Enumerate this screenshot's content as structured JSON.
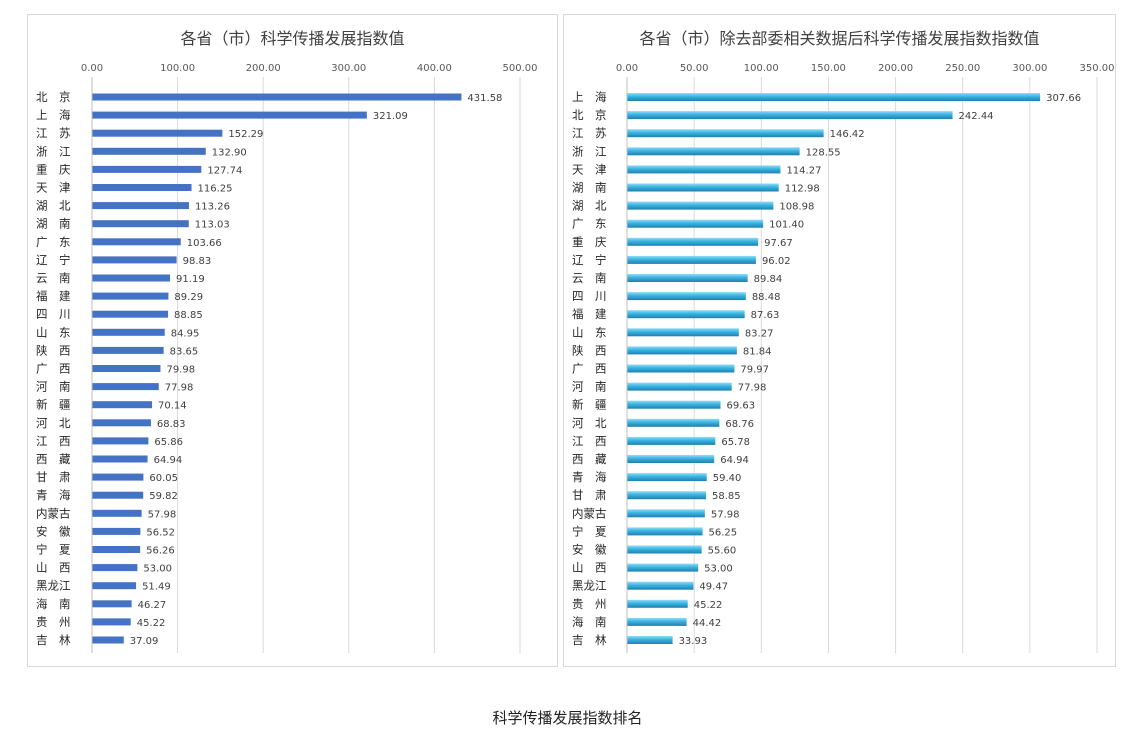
{
  "caption": "科学传播发展指数排名",
  "colors": {
    "left_bar": "#4472c4",
    "right_bar": "#38b3e0",
    "grid": "#d9d9d9"
  },
  "chart_data": [
    {
      "type": "bar",
      "orientation": "horizontal",
      "title": "各省（市）科学传播发展指数值",
      "xlim": [
        0,
        500
      ],
      "ticks": [
        "0.00",
        "100.00",
        "200.00",
        "300.00",
        "400.00",
        "500.00"
      ],
      "grid": true,
      "categories": [
        "北　京",
        "上　海",
        "江　苏",
        "浙　江",
        "重　庆",
        "天　津",
        "湖　北",
        "湖　南",
        "广　东",
        "辽　宁",
        "云　南",
        "福　建",
        "四　川",
        "山　东",
        "陕　西",
        "广　西",
        "河　南",
        "新　疆",
        "河　北",
        "江　西",
        "西　藏",
        "甘　肃",
        "青　海",
        "内蒙古",
        "安　徽",
        "宁　夏",
        "山　西",
        "黑龙江",
        "海　南",
        "贵　州",
        "吉　林"
      ],
      "values": [
        431.58,
        321.09,
        152.29,
        132.9,
        127.74,
        116.25,
        113.26,
        113.03,
        103.66,
        98.83,
        91.19,
        89.29,
        88.85,
        84.95,
        83.65,
        79.98,
        77.98,
        70.14,
        68.83,
        65.86,
        64.94,
        60.05,
        59.82,
        57.98,
        56.52,
        56.26,
        53.0,
        51.49,
        46.27,
        45.22,
        37.09
      ],
      "value_labels": [
        "431.58",
        "321.09",
        "152.29",
        "132.90",
        "127.74",
        "116.25",
        "113.26",
        "113.03",
        "103.66",
        "98.83",
        "91.19",
        "89.29",
        "88.85",
        "84.95",
        "83.65",
        "79.98",
        "77.98",
        "70.14",
        "68.83",
        "65.86",
        "64.94",
        "60.05",
        "59.82",
        "57.98",
        "56.52",
        "56.26",
        "53.00",
        "51.49",
        "46.27",
        "45.22",
        "37.09"
      ]
    },
    {
      "type": "bar",
      "orientation": "horizontal",
      "title": "各省（市）除去部委相关数据后科学传播发展指数指数值",
      "xlim": [
        0,
        350
      ],
      "ticks": [
        "0.00",
        "50.00",
        "100.00",
        "150.00",
        "200.00",
        "250.00",
        "300.00",
        "350.00"
      ],
      "grid": true,
      "categories": [
        "上　海",
        "北　京",
        "江　苏",
        "浙　江",
        "天　津",
        "湖　南",
        "湖　北",
        "广　东",
        "重　庆",
        "辽　宁",
        "云　南",
        "四　川",
        "福　建",
        "山　东",
        "陕　西",
        "广　西",
        "河　南",
        "新　疆",
        "河　北",
        "江　西",
        "西　藏",
        "青　海",
        "甘　肃",
        "内蒙古",
        "宁　夏",
        "安　徽",
        "山　西",
        "黑龙江",
        "贵　州",
        "海　南",
        "吉　林"
      ],
      "values": [
        307.66,
        242.44,
        146.42,
        128.55,
        114.27,
        112.98,
        108.98,
        101.4,
        97.67,
        96.02,
        89.84,
        88.48,
        87.63,
        83.27,
        81.84,
        79.97,
        77.98,
        69.63,
        68.76,
        65.78,
        64.94,
        59.4,
        58.85,
        57.98,
        56.25,
        55.6,
        53.0,
        49.47,
        45.22,
        44.42,
        33.93
      ],
      "value_labels": [
        "307.66",
        "242.44",
        "146.42",
        "128.55",
        "114.27",
        "112.98",
        "108.98",
        "101.40",
        "97.67",
        "96.02",
        "89.84",
        "88.48",
        "87.63",
        "83.27",
        "81.84",
        "79.97",
        "77.98",
        "69.63",
        "68.76",
        "65.78",
        "64.94",
        "59.40",
        "58.85",
        "57.98",
        "56.25",
        "55.60",
        "53.00",
        "49.47",
        "45.22",
        "44.42",
        "33.93"
      ]
    }
  ]
}
